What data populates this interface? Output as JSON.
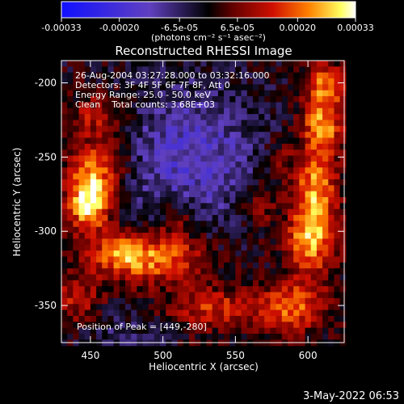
{
  "chart_data": {
    "type": "heatmap",
    "title": "Reconstructed RHESSI Image",
    "xlabel": "Heliocentric X (arcsec)",
    "ylabel": "Heliocentric Y (arcsec)",
    "xlim": [
      430,
      625
    ],
    "ylim": [
      -375,
      -185
    ],
    "xticks": [
      450,
      500,
      550,
      600
    ],
    "yticks": [
      -200,
      -250,
      -300,
      -350
    ],
    "grid": false,
    "colorbar": {
      "location": "top",
      "range": [
        -0.00033,
        0.00033
      ],
      "tick_values": [
        -0.00033,
        -0.0002,
        -6.5e-05,
        6.5e-05,
        0.0002,
        0.00033
      ],
      "tick_labels": [
        "-0.00033",
        "-0.00020",
        "-6.5e-05",
        "6.5e-05",
        "0.00020",
        "0.00033"
      ],
      "unit_label": "(photons cm⁻² s⁻¹ asec⁻²)",
      "colors": [
        "#1010ff",
        "#6040c0",
        "#000000",
        "#600000",
        "#d01000",
        "#ff8000",
        "#ffff60",
        "#ffffff"
      ]
    },
    "annotations": {
      "line1": "26-Aug-2004 03:27:28.000 to 03:32:16.000",
      "line2": "Detectors: 3F 4F 5F 6F 7F 8F, Att 0",
      "line3": "Energy Range: 25.0 - 50.0 keV",
      "line4": "Clean    Total counts: 3.68E+03",
      "peak": "Position of Peak = [449,-280]"
    },
    "peak_position": [
      449,
      -280
    ],
    "pixel_size_arcsec": 4,
    "intensity_sources": [
      {
        "x": 449,
        "y": -280,
        "sx": 10,
        "sy": 14,
        "amp": 1.0
      },
      {
        "x": 455,
        "y": -255,
        "sx": 14,
        "sy": 14,
        "amp": 0.5
      },
      {
        "x": 470,
        "y": -315,
        "sx": 14,
        "sy": 10,
        "amp": 0.55
      },
      {
        "x": 500,
        "y": -318,
        "sx": 22,
        "sy": 12,
        "amp": 0.65
      },
      {
        "x": 535,
        "y": -352,
        "sx": 22,
        "sy": 10,
        "amp": 0.45
      },
      {
        "x": 590,
        "y": -350,
        "sx": 16,
        "sy": 12,
        "amp": 0.6
      },
      {
        "x": 602,
        "y": -305,
        "sx": 12,
        "sy": 16,
        "amp": 0.75
      },
      {
        "x": 605,
        "y": -270,
        "sx": 10,
        "sy": 18,
        "amp": 0.7
      },
      {
        "x": 610,
        "y": -228,
        "sx": 10,
        "sy": 14,
        "amp": 0.7
      },
      {
        "x": 612,
        "y": -200,
        "sx": 10,
        "sy": 10,
        "amp": 0.55
      },
      {
        "x": 455,
        "y": -222,
        "sx": 14,
        "sy": 10,
        "amp": 0.4
      },
      {
        "x": 440,
        "y": -345,
        "sx": 12,
        "sy": 14,
        "amp": 0.35
      },
      {
        "x": 510,
        "y": -290,
        "sx": 10,
        "sy": 10,
        "amp": 0.3
      },
      {
        "x": 565,
        "y": -282,
        "sx": 10,
        "sy": 12,
        "amp": 0.3
      },
      {
        "x": 580,
        "y": -250,
        "sx": 8,
        "sy": 10,
        "amp": 0.25
      }
    ],
    "negative_sources": [
      {
        "x": 520,
        "y": -250,
        "sx": 35,
        "sy": 35,
        "amp": 0.45
      },
      {
        "x": 470,
        "y": -370,
        "sx": 20,
        "sy": 10,
        "amp": 0.2
      }
    ],
    "noise_seed": 7
  },
  "footer": {
    "date": "3-May-2022 06:53"
  }
}
